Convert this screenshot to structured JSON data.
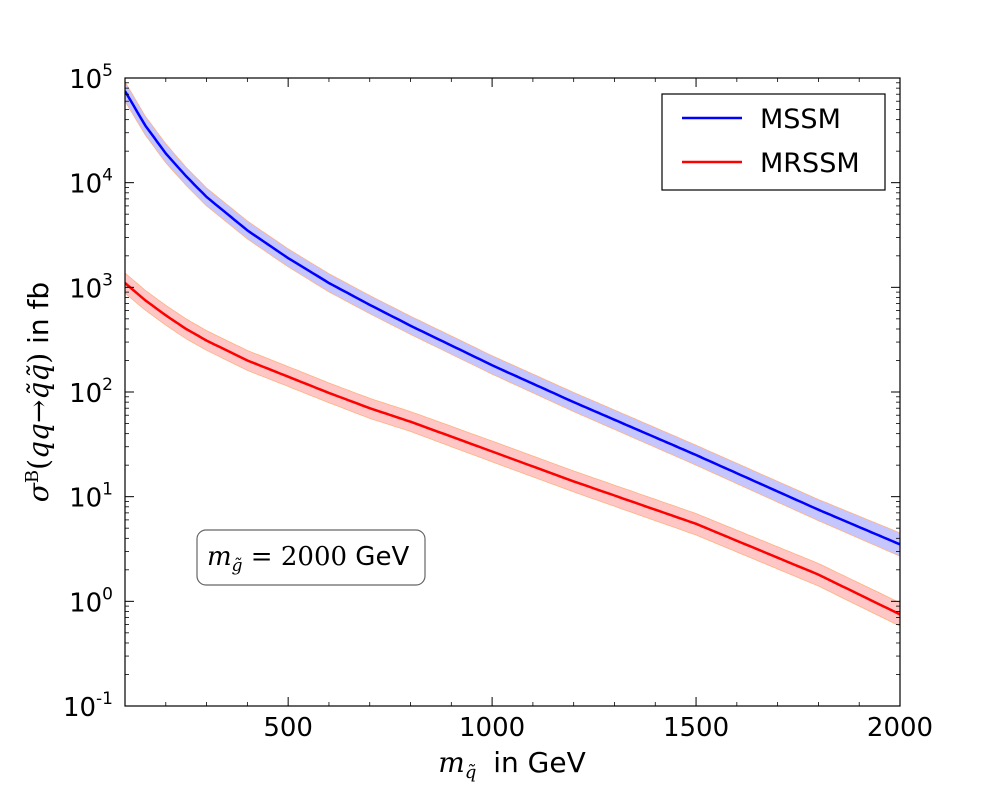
{
  "chart_data": {
    "type": "line",
    "title": "",
    "xlabel": "m_q̃ in GeV",
    "ylabel": "σᴮ(qq→q̃q̃) in fb",
    "xlim": [
      100,
      2000
    ],
    "ylim": [
      0.1,
      100000
    ],
    "yscale": "log",
    "grid": false,
    "legend_position": "top-right",
    "x_ticks": [
      500,
      1000,
      1500,
      2000
    ],
    "x_tick_labels": [
      "500",
      "1000",
      "1500",
      "2000"
    ],
    "y_ticks": [
      0.1,
      1,
      10,
      100,
      1000,
      10000,
      100000
    ],
    "y_tick_labels": [
      {
        "base": "10",
        "exp": "-1"
      },
      {
        "base": "10",
        "exp": "0"
      },
      {
        "base": "10",
        "exp": "1"
      },
      {
        "base": "10",
        "exp": "2"
      },
      {
        "base": "10",
        "exp": "3"
      },
      {
        "base": "10",
        "exp": "4"
      },
      {
        "base": "10",
        "exp": "5"
      }
    ],
    "annotation": {
      "text": "m_g̃ = 2000 GeV"
    },
    "series": [
      {
        "name": "MSSM",
        "color": "#0000ff",
        "band_color": "#8080ff",
        "x": [
          100,
          150,
          200,
          250,
          300,
          400,
          500,
          600,
          700,
          800,
          1000,
          1200,
          1500,
          1800,
          2000
        ],
        "y": [
          75000,
          35000,
          19000,
          11500,
          7300,
          3500,
          1900,
          1100,
          680,
          430,
          180,
          80,
          25,
          7.5,
          3.5
        ],
        "y_low": [
          60000,
          28500,
          15500,
          9400,
          6000,
          2900,
          1570,
          905,
          560,
          355,
          148,
          65,
          20,
          5.9,
          2.7
        ],
        "y_high": [
          92000,
          43000,
          23500,
          14000,
          8900,
          4300,
          2330,
          1350,
          835,
          530,
          222,
          99,
          31,
          9.4,
          4.5
        ]
      },
      {
        "name": "MRSSM",
        "color": "#ff0000",
        "band_color": "#ff8080",
        "x": [
          100,
          150,
          200,
          250,
          300,
          400,
          500,
          600,
          700,
          800,
          1000,
          1200,
          1500,
          1800,
          2000
        ],
        "y": [
          1100,
          750,
          540,
          400,
          310,
          200,
          140,
          98,
          70,
          52,
          27,
          14,
          5.5,
          1.8,
          0.75
        ],
        "y_low": [
          880,
          605,
          435,
          322,
          250,
          161,
          113,
          79,
          56,
          42,
          21.5,
          11.1,
          4.3,
          1.4,
          0.58
        ],
        "y_high": [
          1370,
          935,
          673,
          499,
          386,
          249,
          175,
          122,
          87,
          65,
          34,
          17.6,
          6.9,
          2.3,
          0.97
        ]
      }
    ]
  }
}
